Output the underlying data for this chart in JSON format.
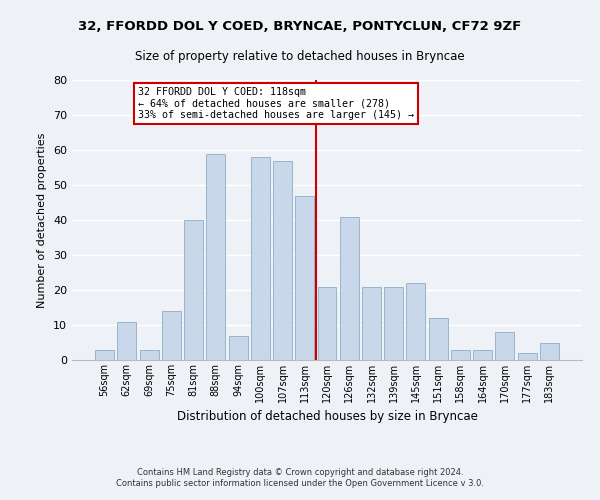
{
  "title": "32, FFORDD DOL Y COED, BRYNCAE, PONTYCLUN, CF72 9ZF",
  "subtitle": "Size of property relative to detached houses in Bryncae",
  "xlabel": "Distribution of detached houses by size in Bryncae",
  "ylabel": "Number of detached properties",
  "bar_color": "#c8d8ea",
  "bar_edge_color": "#9ab4cc",
  "categories": [
    "56sqm",
    "62sqm",
    "69sqm",
    "75sqm",
    "81sqm",
    "88sqm",
    "94sqm",
    "100sqm",
    "107sqm",
    "113sqm",
    "120sqm",
    "126sqm",
    "132sqm",
    "139sqm",
    "145sqm",
    "151sqm",
    "158sqm",
    "164sqm",
    "170sqm",
    "177sqm",
    "183sqm"
  ],
  "values": [
    3,
    11,
    3,
    14,
    40,
    59,
    7,
    58,
    57,
    47,
    21,
    41,
    21,
    21,
    22,
    12,
    3,
    3,
    8,
    2,
    5
  ],
  "vline_x_index": 10,
  "vline_color": "#cc0000",
  "annotation_title": "32 FFORDD DOL Y COED: 118sqm",
  "annotation_line1": "← 64% of detached houses are smaller (278)",
  "annotation_line2": "33% of semi-detached houses are larger (145) →",
  "annotation_box_color": "#ffffff",
  "annotation_box_edge": "#cc0000",
  "ylim": [
    0,
    80
  ],
  "yticks": [
    0,
    10,
    20,
    30,
    40,
    50,
    60,
    70,
    80
  ],
  "footer1": "Contains HM Land Registry data © Crown copyright and database right 2024.",
  "footer2": "Contains public sector information licensed under the Open Government Licence v 3.0.",
  "bg_color": "#eef2f7"
}
